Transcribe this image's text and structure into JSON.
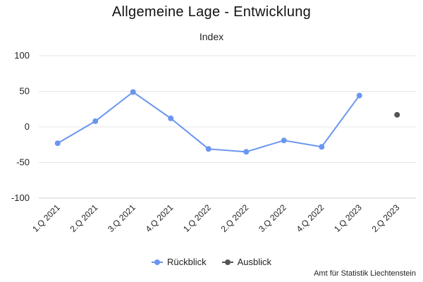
{
  "chart_data": {
    "type": "line",
    "title": "Allgemeine Lage - Entwicklung",
    "subtitle": "Index",
    "xlabel": "",
    "ylabel": "",
    "categories": [
      "1.Q 2021",
      "2.Q 2021",
      "3.Q 2021",
      "4.Q 2021",
      "1.Q 2022",
      "2.Q 2022",
      "3.Q 2022",
      "4.Q 2022",
      "1.Q 2023",
      "2.Q 2023"
    ],
    "ylim": [
      -100,
      100
    ],
    "yticks": [
      100,
      50,
      0,
      -50,
      -100
    ],
    "grid": true,
    "legend_position": "bottom-center",
    "series": [
      {
        "name": "Rückblick",
        "color": "#6a96f0",
        "style": "line+markers",
        "values": [
          -23,
          8,
          49,
          12,
          -31,
          -35,
          -19,
          -28,
          44,
          null
        ]
      },
      {
        "name": "Ausblick",
        "color": "#555555",
        "style": "markers",
        "values": [
          null,
          null,
          null,
          null,
          null,
          null,
          null,
          null,
          null,
          17
        ]
      }
    ]
  },
  "credit": "Amt für Statistik Liechtenstein"
}
